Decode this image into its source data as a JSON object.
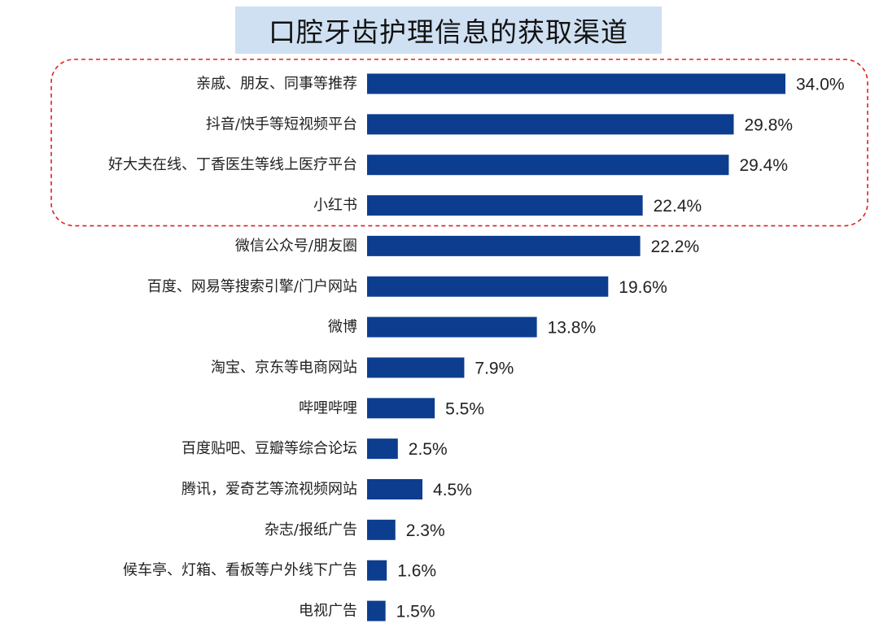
{
  "title": "口腔牙齿护理信息的获取渠道",
  "colors": {
    "bar": "#0d3d8f",
    "highlight_border": "#e02020",
    "title_background": "#cfe0f2"
  },
  "chart_data": {
    "type": "bar",
    "orientation": "horizontal",
    "title": "口腔牙齿护理信息的获取渠道",
    "xlabel": "",
    "ylabel": "",
    "unit": "%",
    "xlim": [
      0,
      34.0
    ],
    "grid": false,
    "legend": "none",
    "categories": [
      "亲戚、朋友、同事等推荐",
      "抖音/快手等短视频平台",
      "好大夫在线、丁香医生等线上医疗平台",
      "小红书",
      "微信公众号/朋友圈",
      "百度、网易等搜索引擎/门户网站",
      "微博",
      "淘宝、京东等电商网站",
      "哔哩哔哩",
      "百度贴吧、豆瓣等综合论坛",
      "腾讯，爱奇艺等流视频网站",
      "杂志/报纸广告",
      "候车亭、灯箱、看板等户外线下广告",
      "电视广告"
    ],
    "values": [
      34.0,
      29.8,
      29.4,
      22.4,
      22.2,
      19.6,
      13.8,
      7.9,
      5.5,
      2.5,
      4.5,
      2.3,
      1.6,
      1.5
    ],
    "value_labels": [
      "34.0%",
      "29.8%",
      "29.4%",
      "22.4%",
      "22.2%",
      "19.6%",
      "13.8%",
      "7.9%",
      "5.5%",
      "2.5%",
      "4.5%",
      "2.3%",
      "1.6%",
      "1.5%"
    ],
    "highlighted_categories": [
      "亲戚、朋友、同事等推荐",
      "抖音/快手等短视频平台",
      "好大夫在线、丁香医生等线上医疗平台",
      "小红书"
    ]
  }
}
